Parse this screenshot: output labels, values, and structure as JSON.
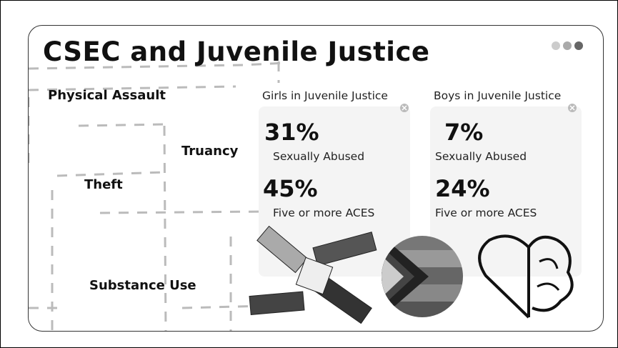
{
  "header": {
    "title": "CSEC and Juvenile Justice"
  },
  "labels": [
    "Physical Assault",
    "Truancy",
    "Theft",
    "Substance Use"
  ],
  "cards": [
    {
      "heading": "Girls in Juvenile Justice",
      "stats": [
        {
          "value": "31%",
          "label": "Sexually Abused"
        },
        {
          "value": "45%",
          "label": "Five or more ACES"
        }
      ]
    },
    {
      "heading": "Boys in Juvenile Justice",
      "stats": [
        {
          "value": "7%",
          "label": "Sexually Abused"
        },
        {
          "value": "24%",
          "label": "Five or more ACES"
        }
      ]
    }
  ]
}
